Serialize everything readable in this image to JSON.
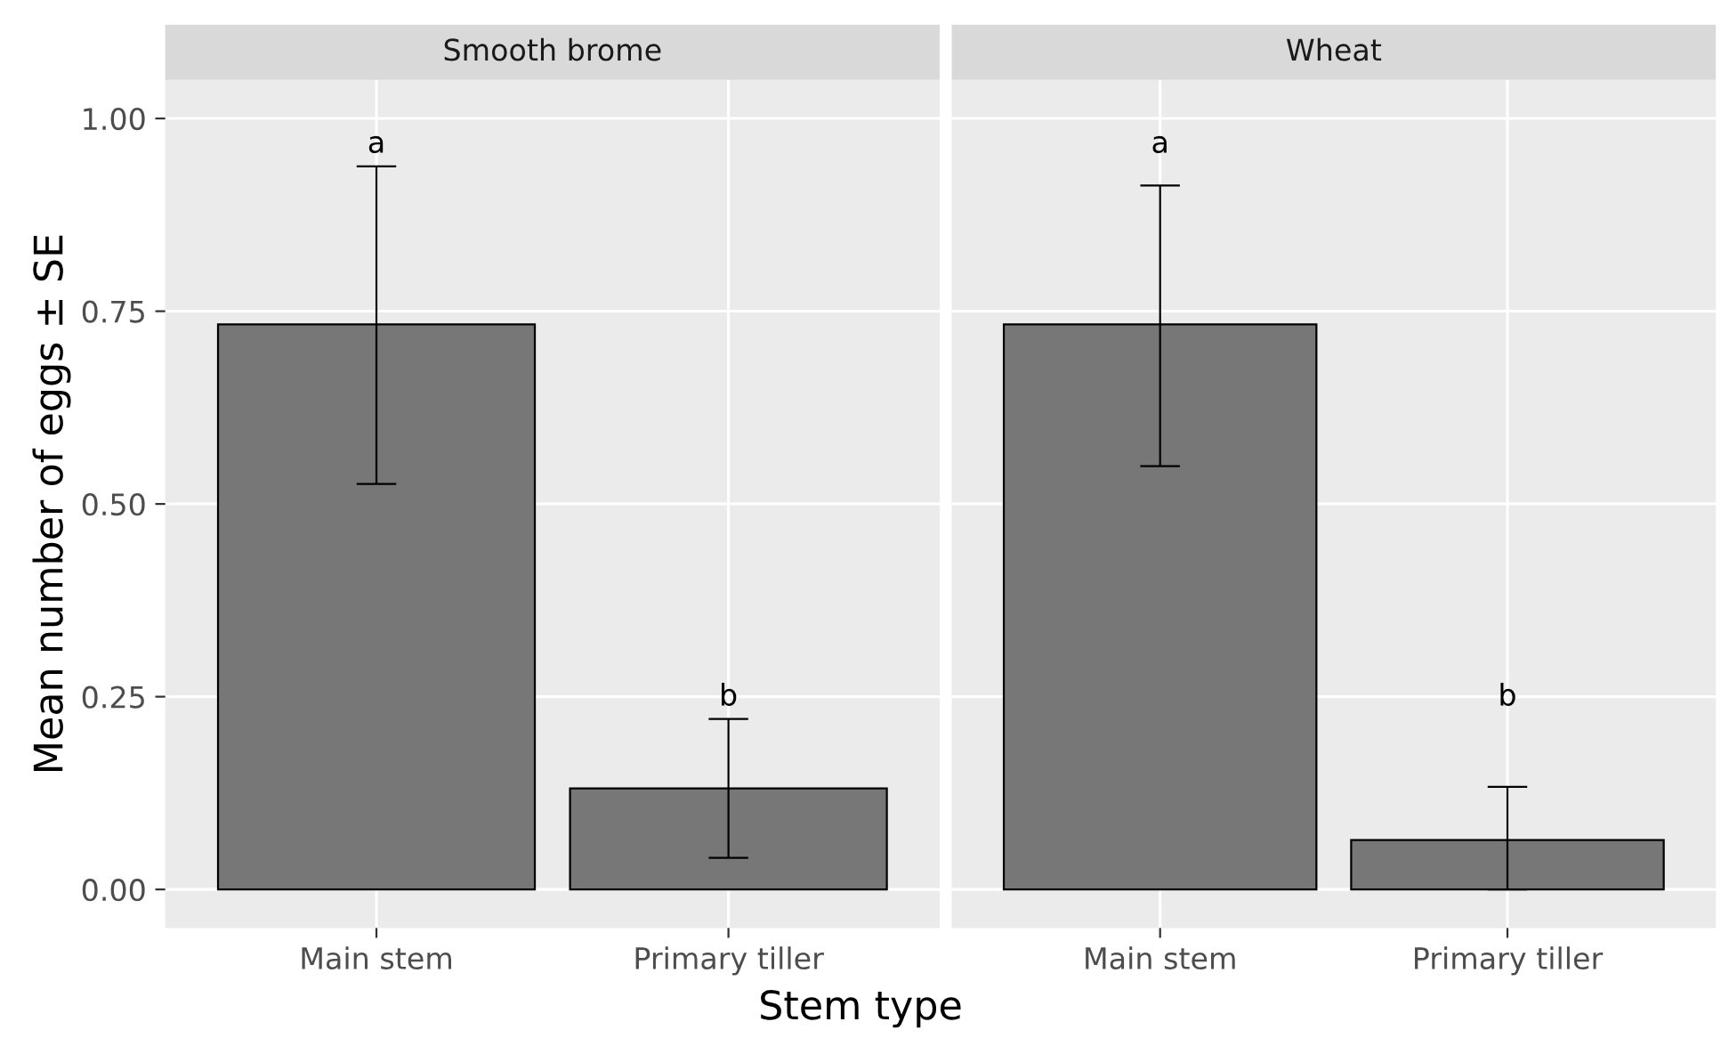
{
  "chart_data": [
    {
      "type": "bar",
      "title": "Smooth brome",
      "xlabel": "Stem type",
      "ylabel": "Mean number of eggs ± SE",
      "categories": [
        "Main stem",
        "Primary tiller"
      ],
      "values": [
        0.733,
        0.131
      ],
      "errors": [
        [
          0.526,
          0.938
        ],
        [
          0.041,
          0.221
        ]
      ],
      "color": "#777777",
      "ylim": [
        -0.05,
        1.05
      ],
      "yticks": [
        {
          "value": 0,
          "label": "0.00"
        },
        {
          "value": 0.25,
          "label": "0.25"
        },
        {
          "value": 0.5,
          "label": "0.50"
        },
        {
          "value": 0.75,
          "label": "0.75"
        },
        {
          "value": 1,
          "label": "1.00"
        }
      ],
      "grid": true,
      "annotations": [
        "a",
        "b"
      ]
    },
    {
      "type": "bar",
      "title": "Wheat",
      "categories": [
        "Main stem",
        "Primary tiller"
      ],
      "values": [
        0.733,
        0.064
      ],
      "errors": [
        [
          0.549,
          0.913
        ],
        [
          0.0,
          0.133
        ]
      ],
      "color": "#777777",
      "ylim": [
        -0.05,
        1.05
      ],
      "yticks": [
        0,
        0.25,
        0.5,
        0.75,
        1
      ],
      "grid": true,
      "tick_labels": "x",
      "annotations": [
        "a",
        "b"
      ]
    }
  ]
}
